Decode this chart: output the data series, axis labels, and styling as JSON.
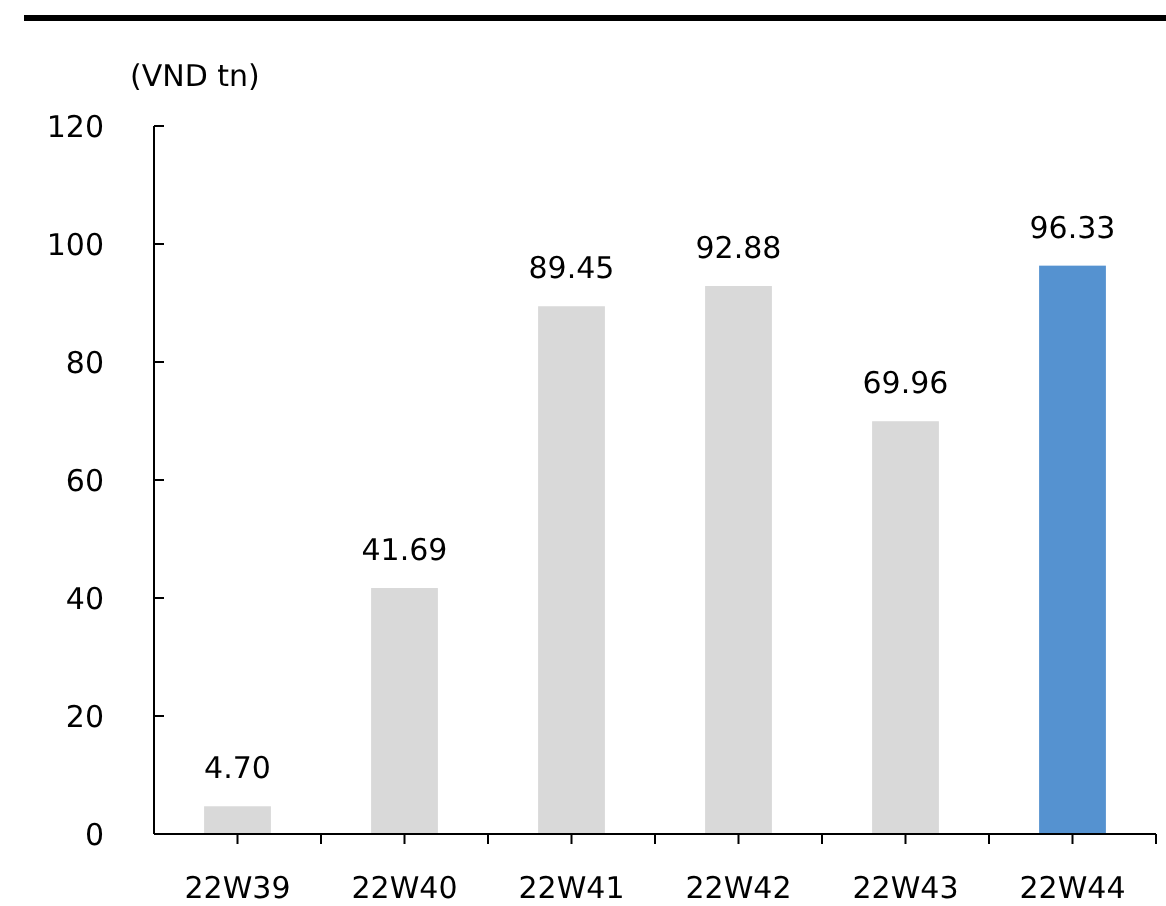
{
  "chart_data": {
    "type": "bar",
    "ylabel": "(VND tn)",
    "categories": [
      "22W39",
      "22W40",
      "22W41",
      "22W42",
      "22W43",
      "22W44"
    ],
    "values": [
      4.7,
      41.69,
      89.45,
      92.88,
      69.96,
      96.33
    ],
    "colors": [
      "#d9d9d9",
      "#d9d9d9",
      "#d9d9d9",
      "#d9d9d9",
      "#d9d9d9",
      "#5592d0"
    ],
    "value_labels": [
      "4.70",
      "41.69",
      "89.45",
      "92.88",
      "69.96",
      "96.33"
    ],
    "ylim": [
      0,
      120
    ],
    "yticks": [
      0,
      20,
      40,
      60,
      80,
      100,
      120
    ],
    "grid": false
  }
}
